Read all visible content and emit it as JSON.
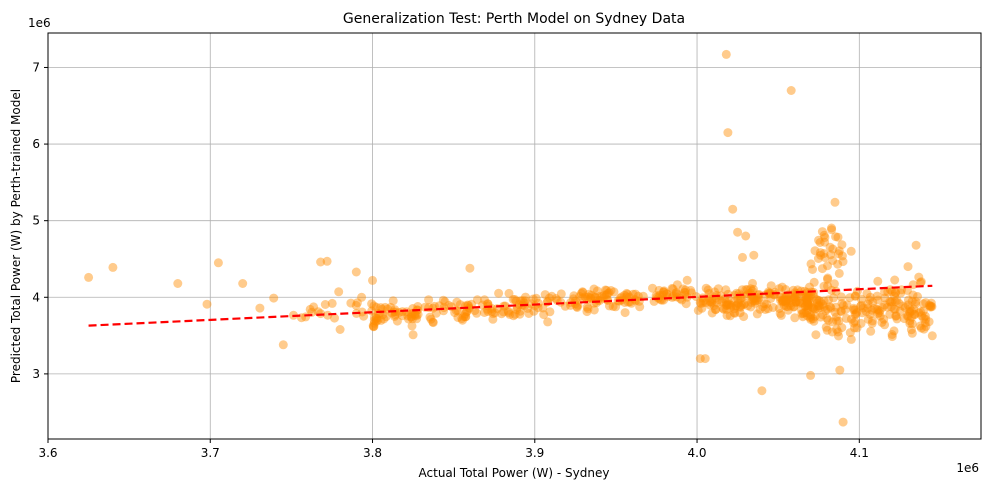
{
  "chart_data": {
    "type": "scatter",
    "title": "Generalization Test: Perth Model on Sydney Data",
    "xlabel": "Actual Total Power (W) - Sydney",
    "ylabel": "Predicted Total Power (W) by Perth-trained Model",
    "x_offset_label": "1e6",
    "y_offset_label": "1e6",
    "xlim": [
      3.6,
      4.175
    ],
    "ylim": [
      2.15,
      7.45
    ],
    "xticks": [
      3.6,
      3.7,
      3.8,
      3.9,
      4.0,
      4.1
    ],
    "xtick_labels": [
      "3.6",
      "3.7",
      "3.8",
      "3.9",
      "4.0",
      "4.1"
    ],
    "yticks": [
      3,
      4,
      5,
      6,
      7
    ],
    "ytick_labels": [
      "3",
      "4",
      "5",
      "6",
      "7"
    ],
    "grid": true,
    "point_color": "#ff8c00",
    "point_alpha": 0.45,
    "trend_color": "#ff0000",
    "trend_style": "dashed",
    "trend_line": {
      "x": [
        3.625,
        4.145
      ],
      "y": [
        3.63,
        4.15
      ]
    },
    "outliers": {
      "x": [
        3.625,
        3.64,
        3.68,
        3.698,
        3.705,
        3.72,
        3.745,
        3.768,
        3.772,
        3.78,
        3.79,
        3.8,
        3.825,
        3.86,
        4.002,
        4.005,
        4.018,
        4.019,
        4.022,
        4.025,
        4.028,
        4.03,
        4.035,
        4.04,
        4.058,
        4.07,
        4.085,
        4.088,
        4.09,
        4.095,
        4.13,
        4.135
      ],
      "y": [
        4.26,
        4.39,
        4.18,
        3.91,
        4.45,
        4.18,
        3.38,
        4.46,
        4.47,
        3.58,
        4.33,
        4.22,
        3.51,
        4.38,
        3.2,
        3.2,
        7.17,
        6.15,
        5.15,
        4.85,
        4.52,
        4.8,
        4.55,
        2.78,
        6.7,
        2.98,
        5.24,
        3.05,
        2.37,
        4.6,
        4.4,
        4.68
      ]
    }
  }
}
